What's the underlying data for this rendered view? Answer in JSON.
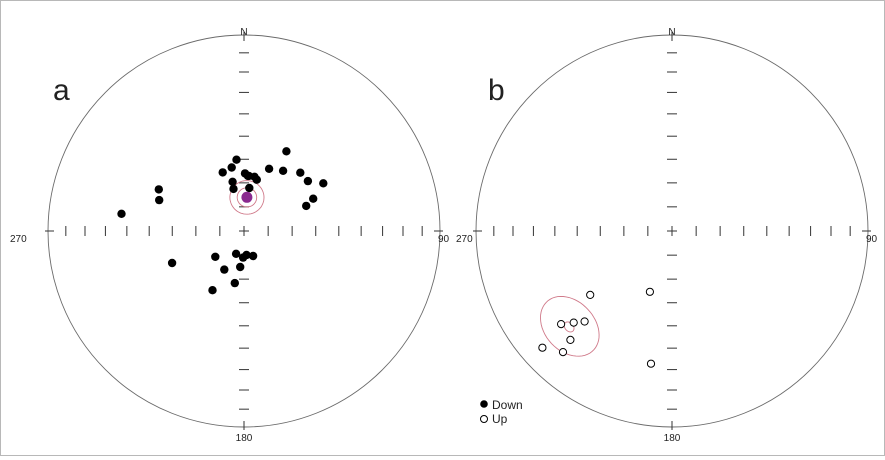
{
  "figure": {
    "colors": {
      "frame": "#b8b8b8",
      "net": "#6a6a6a",
      "tick": "#333333",
      "point": "#000000",
      "mean": "#8a2a8f",
      "confidence": "#d07a8a"
    },
    "panels": [
      {
        "id": "a",
        "letter": "a",
        "labels": {
          "north": "N",
          "east": "90",
          "south": "180",
          "west": "270"
        },
        "points": [
          {
            "dec": 278,
            "inc": 37,
            "hemisphere": "down"
          },
          {
            "dec": 290,
            "inc": 52,
            "hemisphere": "down"
          },
          {
            "dec": 296,
            "inc": 50,
            "hemisphere": "down"
          },
          {
            "dec": 246,
            "inc": 57,
            "hemisphere": "down"
          },
          {
            "dec": 346,
            "inc": 72,
            "hemisphere": "down"
          },
          {
            "dec": 347,
            "inc": 69,
            "hemisphere": "down"
          },
          {
            "dec": 340,
            "inc": 64,
            "hemisphere": "down"
          },
          {
            "dec": 349,
            "inc": 63,
            "hemisphere": "down"
          },
          {
            "dec": 354,
            "inc": 60,
            "hemisphere": "down"
          },
          {
            "dec": 1,
            "inc": 66,
            "hemisphere": "down"
          },
          {
            "dec": 4,
            "inc": 67,
            "hemisphere": "down"
          },
          {
            "dec": 5,
            "inc": 67,
            "hemisphere": "down"
          },
          {
            "dec": 11,
            "inc": 67,
            "hemisphere": "down"
          },
          {
            "dec": 14,
            "inc": 68,
            "hemisphere": "down"
          },
          {
            "dec": 7,
            "inc": 72,
            "hemisphere": "down"
          },
          {
            "dec": 22,
            "inc": 62,
            "hemisphere": "down"
          },
          {
            "dec": 33,
            "inc": 60,
            "hemisphere": "down"
          },
          {
            "dec": 28,
            "inc": 52,
            "hemisphere": "down"
          },
          {
            "dec": 44,
            "inc": 56,
            "hemisphere": "down"
          },
          {
            "dec": 52,
            "inc": 56,
            "hemisphere": "down"
          },
          {
            "dec": 59,
            "inc": 51,
            "hemisphere": "down"
          },
          {
            "dec": 65,
            "inc": 58,
            "hemisphere": "down"
          },
          {
            "dec": 68,
            "inc": 62,
            "hemisphere": "down"
          },
          {
            "dec": 182,
            "inc": 79,
            "hemisphere": "down"
          },
          {
            "dec": 199,
            "inc": 80,
            "hemisphere": "down"
          },
          {
            "dec": 186,
            "inc": 75,
            "hemisphere": "down"
          },
          {
            "dec": 174,
            "inc": 80,
            "hemisphere": "down"
          },
          {
            "dec": 160,
            "inc": 79,
            "hemisphere": "down"
          },
          {
            "dec": 228,
            "inc": 74,
            "hemisphere": "down"
          },
          {
            "dec": 207,
            "inc": 72,
            "hemisphere": "down"
          },
          {
            "dec": 190,
            "inc": 68,
            "hemisphere": "down"
          },
          {
            "dec": 208,
            "inc": 62,
            "hemisphere": "down"
          }
        ],
        "mean": {
          "dec": 5,
          "inc": 76
        },
        "confidence_circles": [
          {
            "dec": 5,
            "inc": 76,
            "alpha95": 4
          },
          {
            "dec": 5,
            "inc": 76,
            "alpha95": 7
          }
        ]
      },
      {
        "id": "b",
        "letter": "b",
        "labels": {
          "north": "N",
          "east": "90",
          "south": "180",
          "west": "270"
        },
        "points": [
          {
            "dec": 232,
            "inc": 46,
            "hemisphere": "up"
          },
          {
            "dec": 224,
            "inc": 36,
            "hemisphere": "up"
          },
          {
            "dec": 227,
            "inc": 32,
            "hemisphere": "up"
          },
          {
            "dec": 230,
            "inc": 27,
            "hemisphere": "up"
          },
          {
            "dec": 223,
            "inc": 25,
            "hemisphere": "up"
          },
          {
            "dec": 222,
            "inc": 18,
            "hemisphere": "up"
          },
          {
            "dec": 228,
            "inc": 12,
            "hemisphere": "up"
          },
          {
            "dec": 189,
            "inc": 32,
            "hemisphere": "up"
          },
          {
            "dec": 200,
            "inc": 63,
            "hemisphere": "up"
          }
        ],
        "mean": {
          "dec": 227,
          "inc": 29
        },
        "confidence_circles": [
          {
            "dec": 227,
            "inc": 29,
            "alpha95": 2
          },
          {
            "dec": 227,
            "inc": 29,
            "alpha95": 12
          }
        ]
      }
    ],
    "legend": [
      {
        "symbol": "filled",
        "label": "Down"
      },
      {
        "symbol": "open",
        "label": "Up"
      }
    ]
  }
}
